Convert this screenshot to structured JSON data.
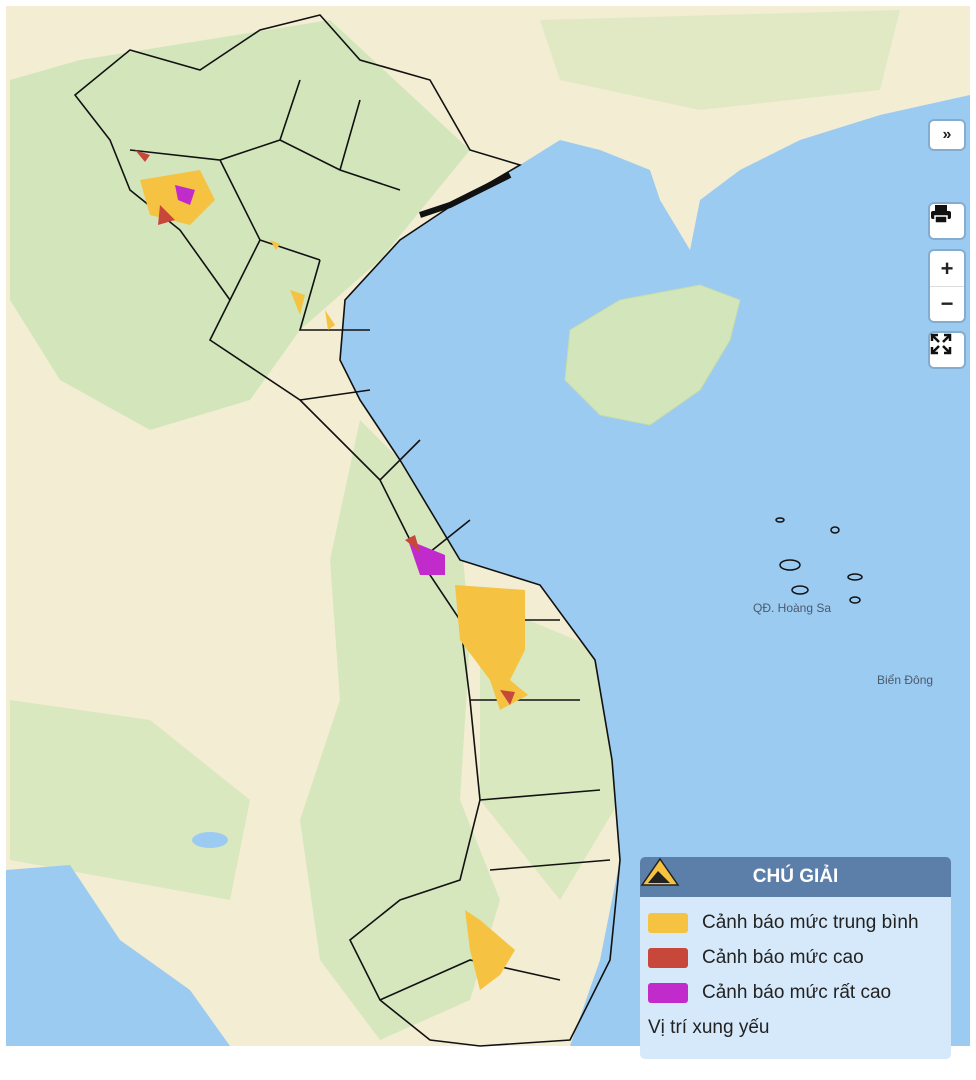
{
  "map": {
    "labels": {
      "paracel": "QĐ. Hoàng Sa",
      "east_sea": "Biển Đông"
    },
    "colors": {
      "sea": "#9ccbf2",
      "land": "#f3edd3",
      "forest": "#d3e6bb",
      "border": "#111111",
      "medium": "#f5c242",
      "high": "#c8473b",
      "very_high": "#c12bcc"
    }
  },
  "controls": {
    "collapse": {
      "icon": "double-chevron-right-icon",
      "label": "»"
    },
    "print": {
      "icon": "printer-icon"
    },
    "zoom_in": {
      "label": "+"
    },
    "zoom_out": {
      "label": "−"
    },
    "fullscreen": {
      "icon": "expand-icon"
    }
  },
  "legend": {
    "title": "CHÚ GIẢI",
    "items": [
      {
        "label": "Cảnh báo mức trung bình",
        "color": "#f5c242"
      },
      {
        "label": "Cảnh báo mức cao",
        "color": "#c8473b"
      },
      {
        "label": "Cảnh báo mức rất cao",
        "color": "#c12bcc"
      },
      {
        "label": "Vị trí xung yếu",
        "icon": "landslide-warning-icon"
      }
    ]
  }
}
